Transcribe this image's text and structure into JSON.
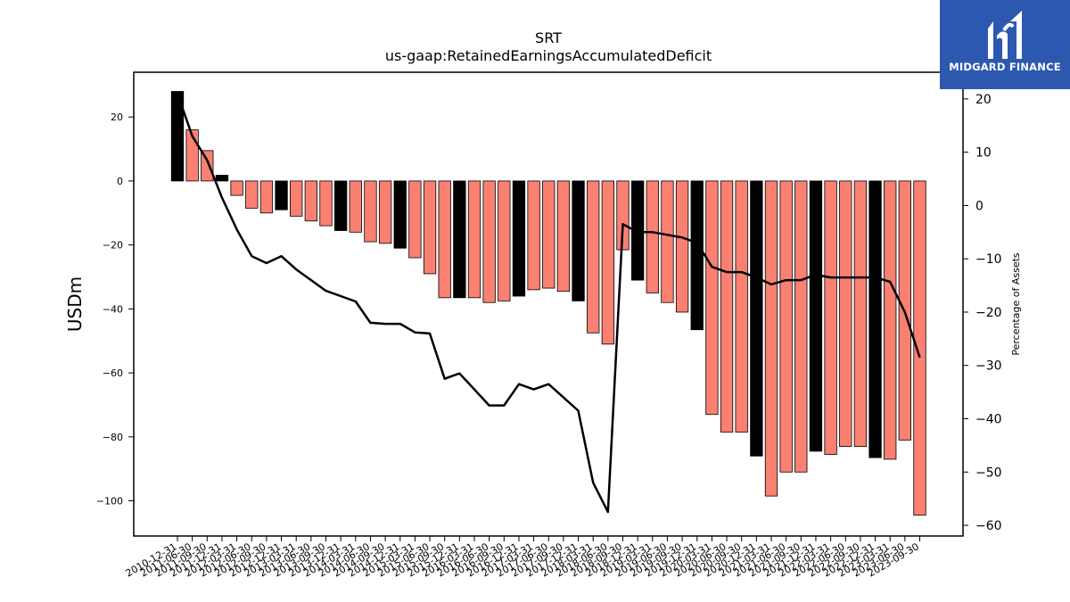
{
  "chart_data": {
    "type": "bar",
    "title": "SRT",
    "subtitle": "us-gaap:RetainedEarningsAccumulatedDeficit",
    "ylabel": "USDm",
    "y2label": "Percentage of Assets",
    "ylim": [
      -111,
      34
    ],
    "y2lim": [
      -62,
      25
    ],
    "yticks": [
      20,
      0,
      -20,
      -40,
      -60,
      -80,
      -100
    ],
    "y2ticks": [
      20,
      10,
      0,
      -10,
      -20,
      -30,
      -40,
      -50,
      -60
    ],
    "x_tick_labels": [
      "2010-12-31",
      "2011-06-30",
      "2011-09-30",
      "2011-12-31",
      "2012-03-31",
      "2012-06-30",
      "2012-09-30",
      "2012-12-31",
      "2013-03-31",
      "2013-06-30",
      "2013-09-30",
      "2013-12-31",
      "2014-03-31",
      "2014-06-30",
      "2014-09-30",
      "2014-12-31",
      "2015-03-31",
      "2015-06-30",
      "2015-09-30",
      "2015-12-31",
      "2016-03-31",
      "2016-06-30",
      "2016-09-30",
      "2016-12-31",
      "2017-03-31",
      "2017-06-30",
      "2017-09-30",
      "2017-12-31",
      "2018-03-31",
      "2018-06-30",
      "2018-09-30",
      "2018-12-31",
      "2019-03-31",
      "2019-06-30",
      "2019-09-30",
      "2019-12-31",
      "2020-03-31",
      "2020-06-30",
      "2020-09-30",
      "2020-12-31",
      "2021-03-31",
      "2021-06-30",
      "2021-09-30",
      "2021-12-31",
      "2022-03-31",
      "2022-06-30",
      "2022-09-30",
      "2022-12-31",
      "2023-03-31",
      "2023-06-30",
      "2023-09-30"
    ],
    "series": [
      {
        "kind": "bar",
        "values": [
          28,
          16,
          9.5,
          1.8,
          -4.5,
          -8.5,
          -10,
          -9,
          -11,
          -12.5,
          -14,
          -15.5,
          -16,
          -19,
          -19.5,
          -21,
          -24,
          -29,
          -36.5,
          -36.5,
          -36.5,
          -38,
          -37.5,
          -36,
          -34,
          -33.5,
          -34.5,
          -37.5,
          -47.5,
          -51,
          -21.5,
          -31,
          -35,
          -38,
          -41,
          -46.5,
          -73,
          -78.5,
          -78.5,
          -86,
          -98.5,
          -91,
          -91,
          -84.5,
          -85.5,
          -83,
          -83,
          -86.5,
          -87,
          -81,
          -104.5
        ],
        "year_end_color": "#000000",
        "color": "#fa8072"
      },
      {
        "kind": "line",
        "axis": "right",
        "color": "#000000",
        "values": [
          21,
          13,
          8.5,
          1.5,
          -4.5,
          -9.5,
          -10.8,
          -9.5,
          -12,
          -14,
          -16,
          -17,
          -18,
          -22,
          -22.2,
          -22.2,
          -23.8,
          -24,
          -32.5,
          -31.5,
          -34.5,
          -37.5,
          -37.5,
          -33.5,
          -34.5,
          -33.5,
          -36,
          -38.5,
          -52,
          -57.5,
          -3.5,
          -5,
          -5,
          -5.5,
          -6,
          -7,
          -11.5,
          -12.5,
          -12.5,
          -13.5,
          -14.8,
          -14,
          -14,
          -13,
          -13.5,
          -13.5,
          -13.5,
          -13.5,
          -14.3,
          -20,
          -28.5
        ]
      }
    ]
  },
  "logo": {
    "text": "MIDGARD FINANCE",
    "color": "#2d58b0"
  }
}
